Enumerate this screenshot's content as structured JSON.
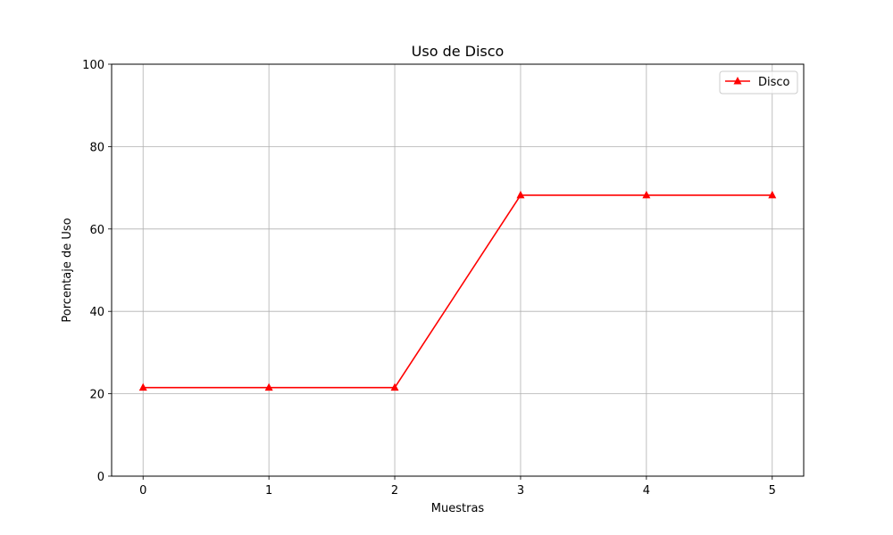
{
  "chart_data": {
    "type": "line",
    "title": "Uso de Disco",
    "xlabel": "Muestras",
    "ylabel": "Porcentaje de Uso",
    "x": [
      0,
      1,
      2,
      3,
      4,
      5
    ],
    "xlim": [
      -0.25,
      5.25
    ],
    "ylim": [
      0,
      100
    ],
    "xticks": [
      0,
      1,
      2,
      3,
      4,
      5
    ],
    "yticks": [
      0,
      20,
      40,
      60,
      80,
      100
    ],
    "grid": true,
    "legend_position": "top-right",
    "series": [
      {
        "name": "Disco",
        "values": [
          21.5,
          21.5,
          21.5,
          68.2,
          68.2,
          68.2
        ],
        "color": "#ff0000",
        "marker": "triangle-up"
      }
    ]
  }
}
